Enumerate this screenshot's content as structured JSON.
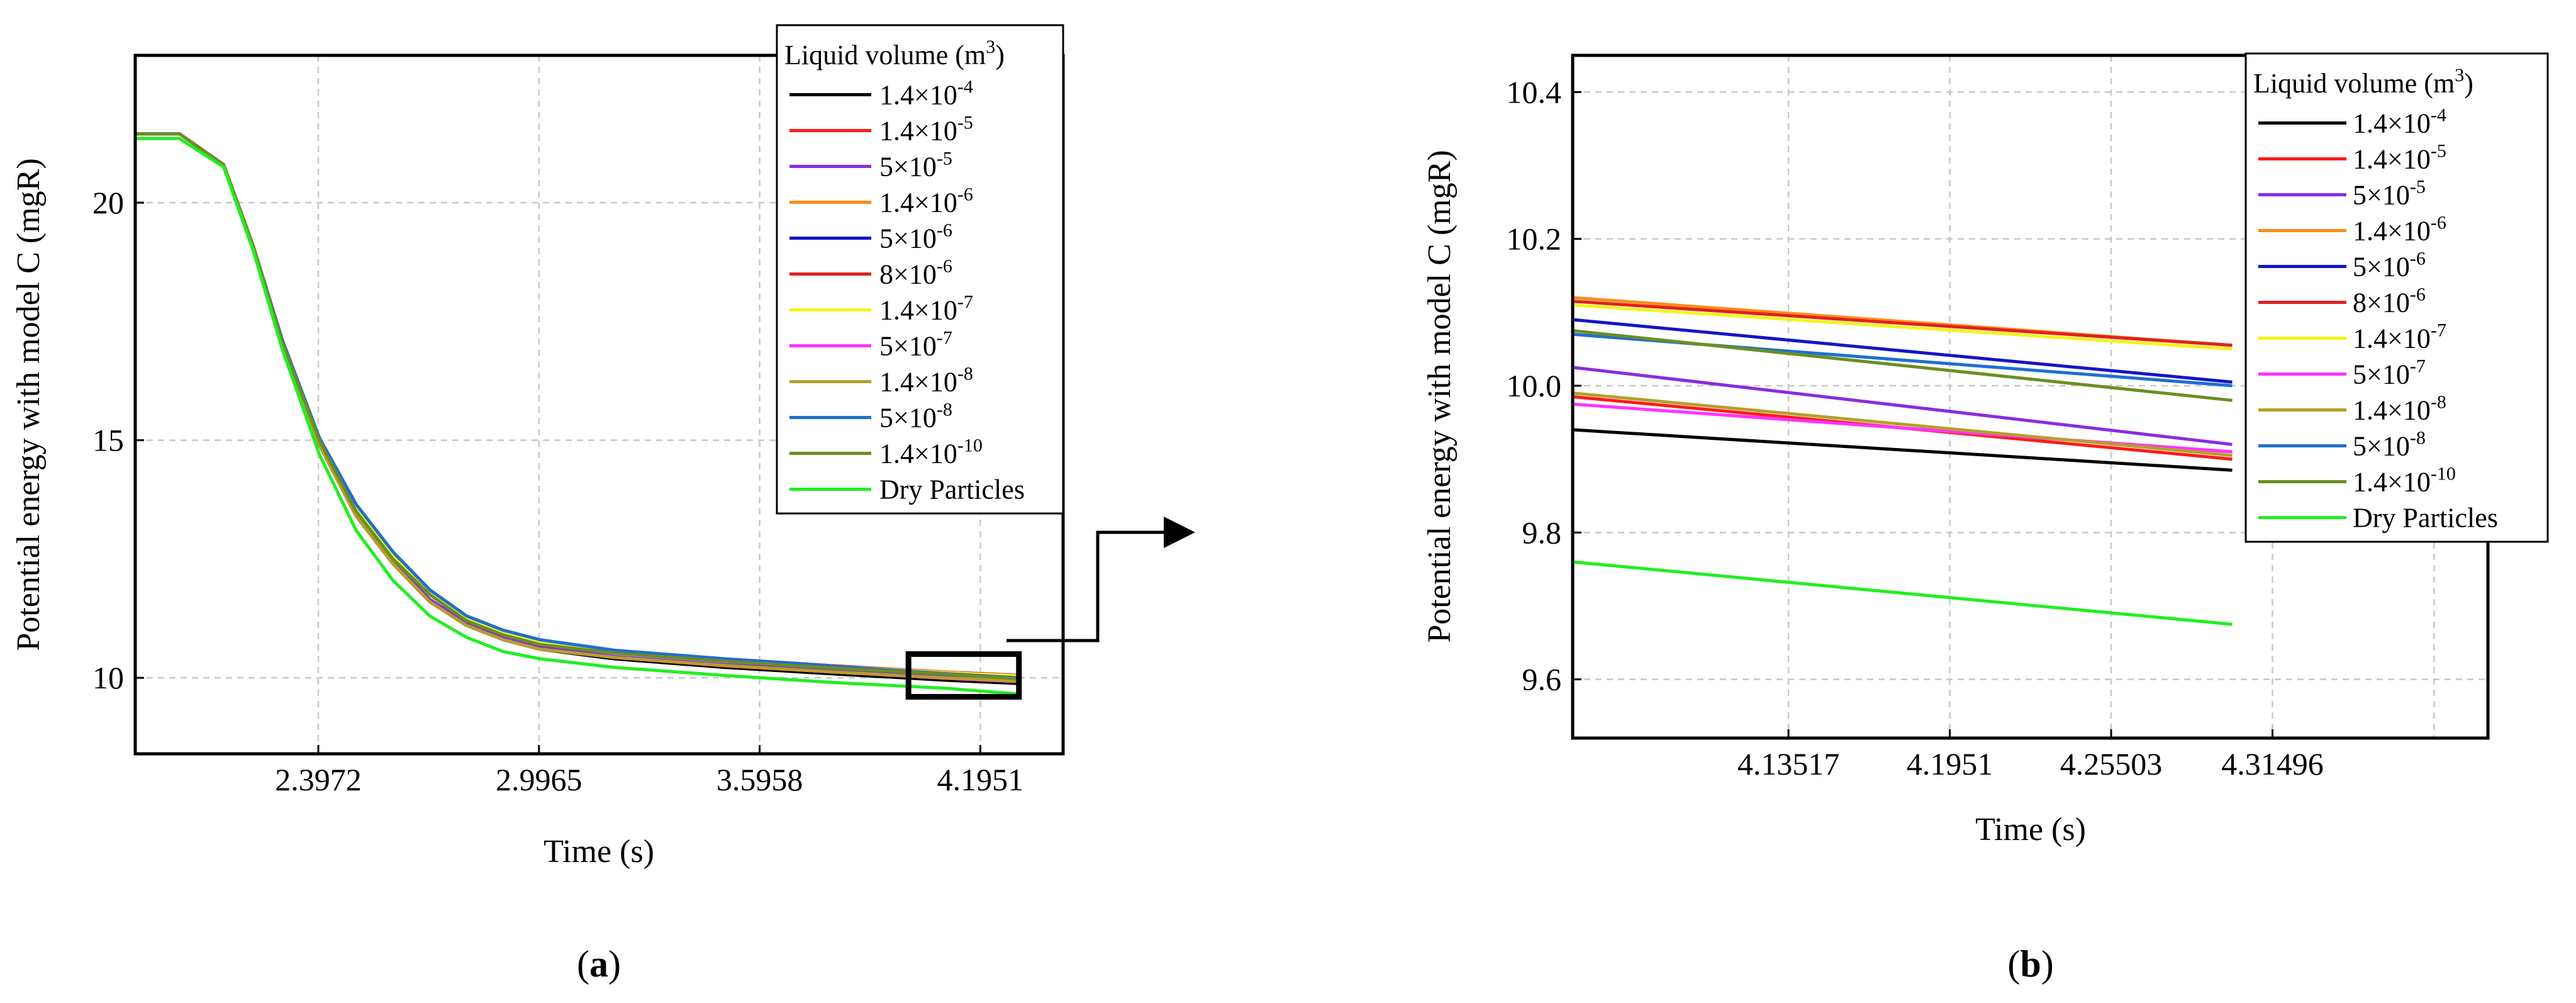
{
  "legend_title": "Liquid volume (m3)",
  "colors": {
    "1.4x10^-4": "#000000",
    "1.4x10^-5": "#ff1a1a",
    "5x10^-5": "#8a2be2",
    "1.4x10^-6": "#ff8c1a",
    "5x10^-6": "#1515c8",
    "8x10^-6": "#e02020",
    "1.4x10^-7": "#f5f51a",
    "5x10^-7": "#ff33ff",
    "1.4x10^-8": "#b3a02a",
    "5x10^-8": "#1f6fd0",
    "1.4x10^-10": "#6b8e23",
    "Dry Particles": "#22ee22"
  },
  "chart_data": [
    {
      "panel_label": "a",
      "type": "line",
      "title": "",
      "xlabel": "Time (s)",
      "ylabel": "Potential energy with model C (mgR)",
      "xlim": [
        1.9,
        4.42
      ],
      "ylim": [
        8.4,
        23.1
      ],
      "xticks": [
        "2.3972",
        "2.9965",
        "3.5958",
        "4.1951"
      ],
      "xtick_values": [
        2.3972,
        2.9965,
        3.5958,
        4.1951
      ],
      "yticks": [
        "10",
        "15",
        "20"
      ],
      "ytick_values": [
        10,
        15,
        20
      ],
      "grid": true,
      "legend_position": "top-right",
      "annotation": "zoom box around t = 4.0–4.3 s, E = 9.6–10.5 mgR, arrow to panel (b)",
      "zoom_box": {
        "x": [
          4.0,
          4.3
        ],
        "y": [
          9.6,
          10.5
        ]
      },
      "series": [
        {
          "name": "1.4×10-4",
          "base": "1.4",
          "exp": "-4",
          "color_key": "1.4x10^-4",
          "x": [
            1.9,
            2.02,
            2.14,
            2.22,
            2.3,
            2.4,
            2.5,
            2.6,
            2.7,
            2.8,
            2.9,
            3.0,
            3.2,
            3.5,
            3.8,
            4.1,
            4.3
          ],
          "y": [
            21.45,
            21.45,
            20.8,
            19.1,
            17.0,
            14.9,
            13.4,
            12.4,
            11.6,
            11.1,
            10.8,
            10.6,
            10.4,
            10.22,
            10.08,
            9.95,
            9.88
          ]
        },
        {
          "name": "1.4×10-5",
          "base": "1.4",
          "exp": "-5",
          "color_key": "1.4x10^-5",
          "x": [
            1.9,
            2.02,
            2.14,
            2.22,
            2.3,
            2.4,
            2.5,
            2.6,
            2.7,
            2.8,
            2.9,
            3.0,
            3.2,
            3.5,
            3.8,
            4.1,
            4.3
          ],
          "y": [
            21.45,
            21.45,
            20.8,
            19.1,
            17.0,
            14.9,
            13.4,
            12.4,
            11.6,
            11.1,
            10.8,
            10.6,
            10.43,
            10.25,
            10.12,
            10.0,
            9.93
          ]
        },
        {
          "name": "5×10-5",
          "base": "5",
          "exp": "-5",
          "color_key": "5x10^-5",
          "x": [
            1.9,
            2.02,
            2.14,
            2.22,
            2.3,
            2.4,
            2.5,
            2.6,
            2.7,
            2.8,
            2.9,
            3.0,
            3.2,
            3.5,
            3.8,
            4.1,
            4.3
          ],
          "y": [
            21.45,
            21.45,
            20.8,
            19.1,
            17.0,
            14.95,
            13.45,
            12.45,
            11.65,
            11.15,
            10.85,
            10.65,
            10.45,
            10.28,
            10.15,
            10.03,
            9.95
          ]
        },
        {
          "name": "1.4×10-6",
          "base": "1.4",
          "exp": "-6",
          "color_key": "1.4x10^-6",
          "x": [
            1.9,
            2.02,
            2.14,
            2.22,
            2.3,
            2.4,
            2.5,
            2.6,
            2.7,
            2.8,
            2.9,
            3.0,
            3.2,
            3.5,
            3.8,
            4.1,
            4.3
          ],
          "y": [
            21.45,
            21.45,
            20.8,
            19.1,
            17.05,
            15.0,
            13.55,
            12.55,
            11.8,
            11.25,
            10.95,
            10.75,
            10.55,
            10.38,
            10.25,
            10.12,
            10.05
          ]
        },
        {
          "name": "5×10-6",
          "base": "5",
          "exp": "-6",
          "color_key": "5x10^-6",
          "x": [
            1.9,
            2.02,
            2.14,
            2.22,
            2.3,
            2.4,
            2.5,
            2.6,
            2.7,
            2.8,
            2.9,
            3.0,
            3.2,
            3.5,
            3.8,
            4.1,
            4.3
          ],
          "y": [
            21.45,
            21.45,
            20.8,
            19.1,
            17.1,
            15.05,
            13.65,
            12.65,
            11.85,
            11.3,
            11.0,
            10.8,
            10.58,
            10.4,
            10.25,
            10.1,
            10.0
          ]
        },
        {
          "name": "8×10-6",
          "base": "8",
          "exp": "-6",
          "color_key": "8x10^-6",
          "x": [
            1.9,
            2.02,
            2.14,
            2.22,
            2.3,
            2.4,
            2.5,
            2.6,
            2.7,
            2.8,
            2.9,
            3.0,
            3.2,
            3.5,
            3.8,
            4.1,
            4.3
          ],
          "y": [
            21.45,
            21.45,
            20.8,
            19.1,
            17.05,
            15.0,
            13.55,
            12.55,
            11.8,
            11.25,
            10.95,
            10.75,
            10.55,
            10.38,
            10.25,
            10.12,
            10.05
          ]
        },
        {
          "name": "1.4×10-7",
          "base": "1.4",
          "exp": "-7",
          "color_key": "1.4x10^-7",
          "x": [
            1.9,
            2.02,
            2.14,
            2.22,
            2.3,
            2.4,
            2.5,
            2.6,
            2.7,
            2.8,
            2.9,
            3.0,
            3.2,
            3.5,
            3.8,
            4.1,
            4.3
          ],
          "y": [
            21.45,
            21.45,
            20.8,
            19.1,
            17.05,
            15.0,
            13.55,
            12.55,
            11.8,
            11.25,
            10.95,
            10.75,
            10.55,
            10.38,
            10.24,
            10.11,
            10.04
          ]
        },
        {
          "name": "5×10-7",
          "base": "5",
          "exp": "-7",
          "color_key": "5x10^-7",
          "x": [
            1.9,
            2.02,
            2.14,
            2.22,
            2.3,
            2.4,
            2.5,
            2.6,
            2.7,
            2.8,
            2.9,
            3.0,
            3.2,
            3.5,
            3.8,
            4.1,
            4.3
          ],
          "y": [
            21.45,
            21.45,
            20.8,
            19.1,
            17.0,
            14.9,
            13.4,
            12.4,
            11.6,
            11.1,
            10.8,
            10.6,
            10.43,
            10.26,
            10.12,
            9.99,
            9.92
          ]
        },
        {
          "name": "1.4×10-8",
          "base": "1.4",
          "exp": "-8",
          "color_key": "1.4x10^-8",
          "x": [
            1.9,
            2.02,
            2.14,
            2.22,
            2.3,
            2.4,
            2.5,
            2.6,
            2.7,
            2.8,
            2.9,
            3.0,
            3.2,
            3.5,
            3.8,
            4.1,
            4.3
          ],
          "y": [
            21.45,
            21.45,
            20.8,
            19.1,
            17.0,
            14.9,
            13.4,
            12.4,
            11.6,
            11.1,
            10.8,
            10.6,
            10.43,
            10.26,
            10.12,
            10.0,
            9.93
          ]
        },
        {
          "name": "5×10-8",
          "base": "5",
          "exp": "-8",
          "color_key": "5x10^-8",
          "x": [
            1.9,
            2.02,
            2.14,
            2.22,
            2.3,
            2.4,
            2.5,
            2.6,
            2.7,
            2.8,
            2.9,
            3.0,
            3.2,
            3.5,
            3.8,
            4.1,
            4.3
          ],
          "y": [
            21.45,
            21.45,
            20.8,
            19.1,
            17.1,
            15.05,
            13.65,
            12.65,
            11.85,
            11.3,
            11.0,
            10.8,
            10.58,
            10.4,
            10.24,
            10.09,
            10.0
          ]
        },
        {
          "name": "1.4×10-10",
          "base": "1.4",
          "exp": "-10",
          "color_key": "1.4x10^-10",
          "x": [
            1.9,
            2.02,
            2.14,
            2.22,
            2.3,
            2.4,
            2.5,
            2.6,
            2.7,
            2.8,
            2.9,
            3.0,
            3.2,
            3.5,
            3.8,
            4.1,
            4.3
          ],
          "y": [
            21.45,
            21.45,
            20.8,
            19.1,
            17.05,
            15.0,
            13.5,
            12.5,
            11.75,
            11.2,
            10.9,
            10.7,
            10.52,
            10.35,
            10.2,
            10.08,
            9.98
          ]
        },
        {
          "name": "Dry Particles",
          "base": "Dry Particles",
          "exp": "",
          "color_key": "Dry Particles",
          "x": [
            1.9,
            2.02,
            2.14,
            2.22,
            2.3,
            2.4,
            2.5,
            2.6,
            2.7,
            2.8,
            2.9,
            3.0,
            3.2,
            3.5,
            3.8,
            4.1,
            4.3
          ],
          "y": [
            21.35,
            21.35,
            20.75,
            19.0,
            16.9,
            14.7,
            13.1,
            12.05,
            11.3,
            10.85,
            10.55,
            10.4,
            10.22,
            10.05,
            9.9,
            9.78,
            9.66
          ]
        }
      ]
    },
    {
      "panel_label": "b",
      "type": "line",
      "title": "",
      "xlabel": "Time (s)",
      "ylabel": "Potential energy with model C (mgR)",
      "xlim": [
        4.055,
        4.395
      ],
      "ylim": [
        9.52,
        10.45
      ],
      "xticks": [
        "4.13517",
        "4.1951",
        "4.25503",
        "4.31496"
      ],
      "xtick_values": [
        4.13517,
        4.1951,
        4.25503,
        4.31496
      ],
      "yticks": [
        "9.6",
        "9.8",
        "10.0",
        "10.2",
        "10.4"
      ],
      "ytick_values": [
        9.6,
        9.8,
        10.0,
        10.2,
        10.4
      ],
      "grid": true,
      "legend_position": "top-right",
      "series": [
        {
          "name": "1.4×10-4",
          "base": "1.4",
          "exp": "-4",
          "color_key": "1.4x10^-4",
          "x": [
            4.055,
            4.3
          ],
          "y": [
            9.94,
            9.885
          ]
        },
        {
          "name": "1.4×10-5",
          "base": "1.4",
          "exp": "-5",
          "color_key": "1.4x10^-5",
          "x": [
            4.055,
            4.3
          ],
          "y": [
            9.985,
            9.9
          ]
        },
        {
          "name": "5×10-5",
          "base": "5",
          "exp": "-5",
          "color_key": "5x10^-5",
          "x": [
            4.055,
            4.3
          ],
          "y": [
            10.025,
            9.92
          ]
        },
        {
          "name": "1.4×10-6",
          "base": "1.4",
          "exp": "-6",
          "color_key": "1.4x10^-6",
          "x": [
            4.055,
            4.3
          ],
          "y": [
            10.12,
            10.055
          ]
        },
        {
          "name": "5×10-6",
          "base": "5",
          "exp": "-6",
          "color_key": "5x10^-6",
          "x": [
            4.055,
            4.3
          ],
          "y": [
            10.09,
            10.005
          ]
        },
        {
          "name": "8×10-6",
          "base": "8",
          "exp": "-6",
          "color_key": "8x10^-6",
          "x": [
            4.055,
            4.3
          ],
          "y": [
            10.115,
            10.055
          ]
        },
        {
          "name": "1.4×10-7",
          "base": "1.4",
          "exp": "-7",
          "color_key": "1.4x10^-7",
          "x": [
            4.055,
            4.3
          ],
          "y": [
            10.11,
            10.05
          ]
        },
        {
          "name": "5×10-7",
          "base": "5",
          "exp": "-7",
          "color_key": "5x10^-7",
          "x": [
            4.055,
            4.3
          ],
          "y": [
            9.975,
            9.91
          ]
        },
        {
          "name": "1.4×10-8",
          "base": "1.4",
          "exp": "-8",
          "color_key": "1.4x10^-8",
          "x": [
            4.055,
            4.3
          ],
          "y": [
            9.99,
            9.905
          ]
        },
        {
          "name": "5×10-8",
          "base": "5",
          "exp": "-8",
          "color_key": "5x10^-8",
          "x": [
            4.055,
            4.3
          ],
          "y": [
            10.07,
            10.0
          ]
        },
        {
          "name": "1.4×10-10",
          "base": "1.4",
          "exp": "-10",
          "color_key": "1.4x10^-10",
          "x": [
            4.055,
            4.3
          ],
          "y": [
            10.075,
            9.98
          ]
        },
        {
          "name": "Dry Particles",
          "base": "Dry Particles",
          "exp": "",
          "color_key": "Dry Particles",
          "x": [
            4.055,
            4.3
          ],
          "y": [
            9.76,
            9.675
          ]
        }
      ]
    }
  ]
}
